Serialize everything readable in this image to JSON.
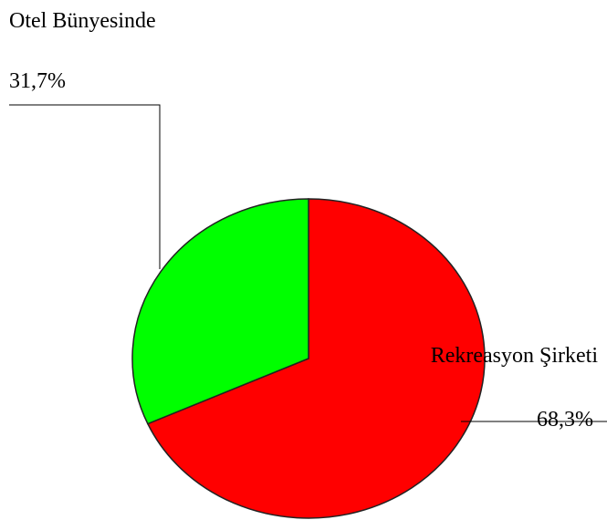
{
  "chart_data": {
    "type": "pie",
    "categories": [
      "Rekreasyon Şirketi",
      "Otel Bünyesinde"
    ],
    "values": [
      68.3,
      31.7
    ],
    "value_labels": [
      "68,3%",
      "31,7%"
    ],
    "colors": [
      "#ff0000",
      "#00ff00"
    ]
  }
}
